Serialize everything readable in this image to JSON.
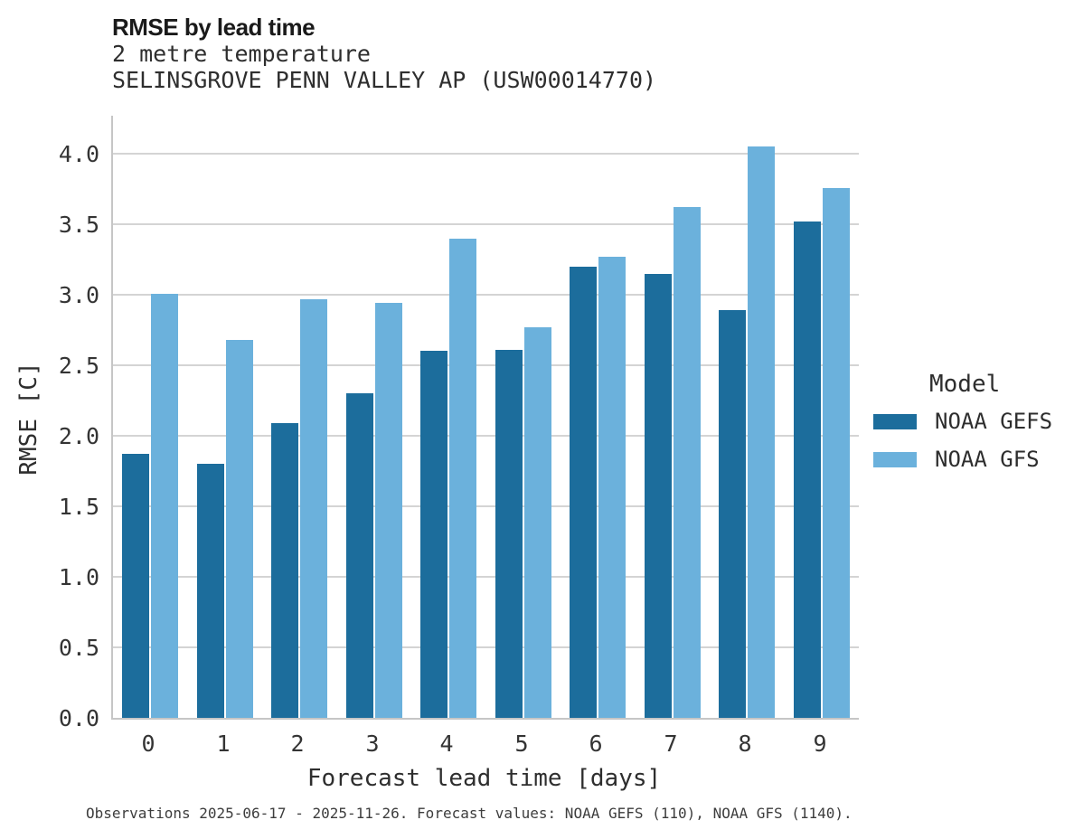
{
  "header": {
    "title": "RMSE by lead time",
    "subtitle_variable": "2 metre temperature",
    "subtitle_station": "SELINSGROVE PENN VALLEY AP (USW00014770)"
  },
  "legend": {
    "title": "Model",
    "items": [
      {
        "label": "NOAA GEFS",
        "color": "#1c6d9c"
      },
      {
        "label": "NOAA GFS",
        "color": "#6bb1dc"
      }
    ]
  },
  "footer": {
    "note": "Observations 2025-06-17 - 2025-11-26. Forecast values: NOAA GEFS (110), NOAA GFS (1140)."
  },
  "colors": {
    "gefs_dark_blue": "#1c6d9c",
    "gfs_light_blue": "#6bb1dc",
    "gridline_grey": "#d4d4d4",
    "spine_grey": "#c6c6c6"
  },
  "chart_data": {
    "type": "bar",
    "title": "RMSE by lead time",
    "subtitle": "2 metre temperature — SELINSGROVE PENN VALLEY AP (USW00014770)",
    "xlabel": "Forecast lead time [days]",
    "ylabel": "RMSE [C]",
    "categories": [
      "0",
      "1",
      "2",
      "3",
      "4",
      "5",
      "6",
      "7",
      "8",
      "9"
    ],
    "series": [
      {
        "name": "NOAA GEFS",
        "color": "#1c6d9c",
        "values": [
          1.87,
          1.8,
          2.09,
          2.3,
          2.6,
          2.61,
          3.2,
          3.15,
          2.89,
          3.52
        ]
      },
      {
        "name": "NOAA GFS",
        "color": "#6bb1dc",
        "values": [
          3.01,
          2.68,
          2.97,
          2.94,
          3.4,
          2.77,
          3.27,
          3.62,
          4.05,
          3.76
        ]
      }
    ],
    "ylim": [
      0,
      4.27
    ],
    "ytick_step": 0.5,
    "yticks": [
      "0.0",
      "0.5",
      "1.0",
      "1.5",
      "2.0",
      "2.5",
      "3.0",
      "3.5",
      "4.0"
    ],
    "grid": true,
    "legend_title": "Model",
    "legend_position": "center-right"
  }
}
